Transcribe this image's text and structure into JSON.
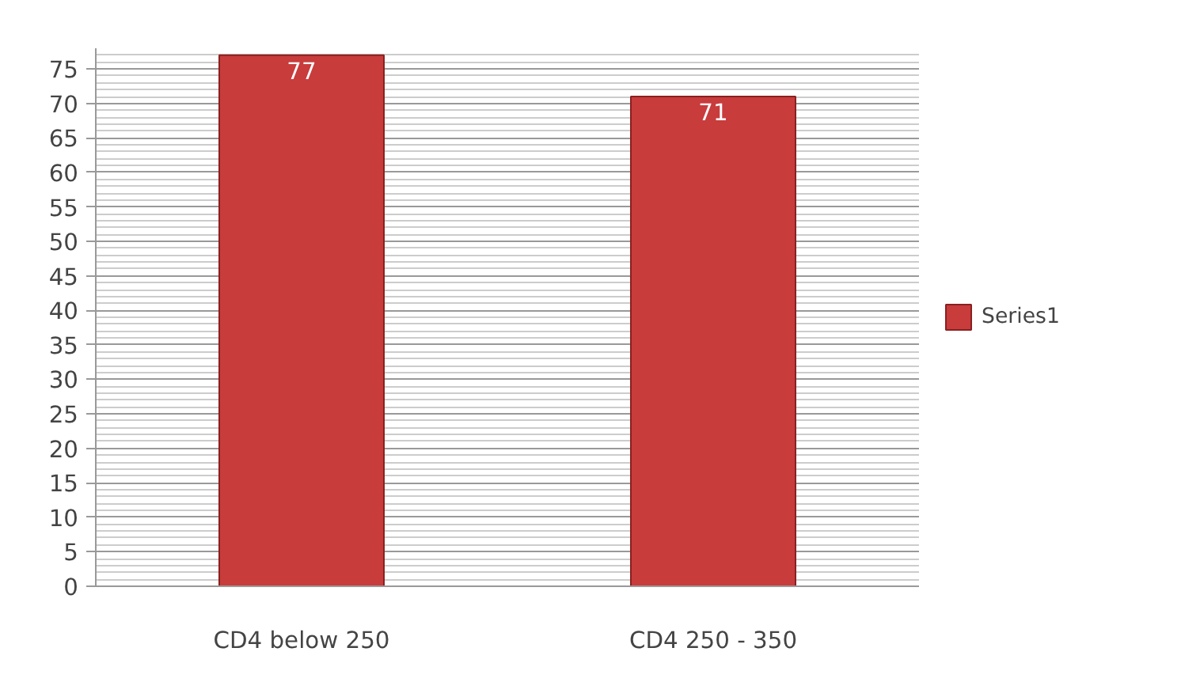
{
  "chart_data": {
    "type": "bar",
    "categories": [
      "CD4 below 250",
      "CD4 250 - 350"
    ],
    "series": [
      {
        "name": "Series1",
        "color": "#c83c3c",
        "values": [
          77,
          71
        ]
      }
    ],
    "ylim": [
      0,
      78
    ],
    "yticks": [
      0,
      5,
      10,
      15,
      20,
      25,
      30,
      35,
      40,
      45,
      50,
      55,
      60,
      65,
      70,
      75
    ],
    "grid": "y",
    "legend": "right",
    "data_labels": true
  }
}
